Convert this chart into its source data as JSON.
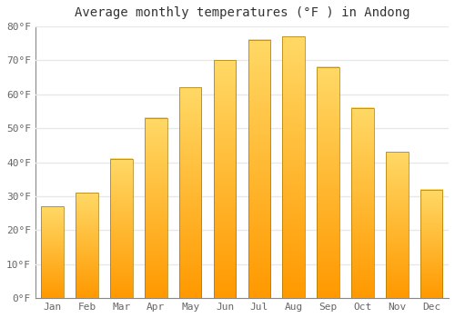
{
  "title": "Average monthly temperatures (°F ) in Andong",
  "months": [
    "Jan",
    "Feb",
    "Mar",
    "Apr",
    "May",
    "Jun",
    "Jul",
    "Aug",
    "Sep",
    "Oct",
    "Nov",
    "Dec"
  ],
  "values": [
    27,
    31,
    41,
    53,
    62,
    70,
    76,
    77,
    68,
    56,
    43,
    32
  ],
  "bar_color": "#FFAA00",
  "bar_edge_color": "#CC8800",
  "background_color": "#FFFFFF",
  "grid_color": "#E8E8E8",
  "ylim": [
    0,
    80
  ],
  "yticks": [
    0,
    10,
    20,
    30,
    40,
    50,
    60,
    70,
    80
  ],
  "ytick_labels": [
    "0°F",
    "10°F",
    "20°F",
    "30°F",
    "40°F",
    "50°F",
    "60°F",
    "70°F",
    "80°F"
  ],
  "title_fontsize": 10,
  "tick_fontsize": 8,
  "title_font_family": "monospace"
}
